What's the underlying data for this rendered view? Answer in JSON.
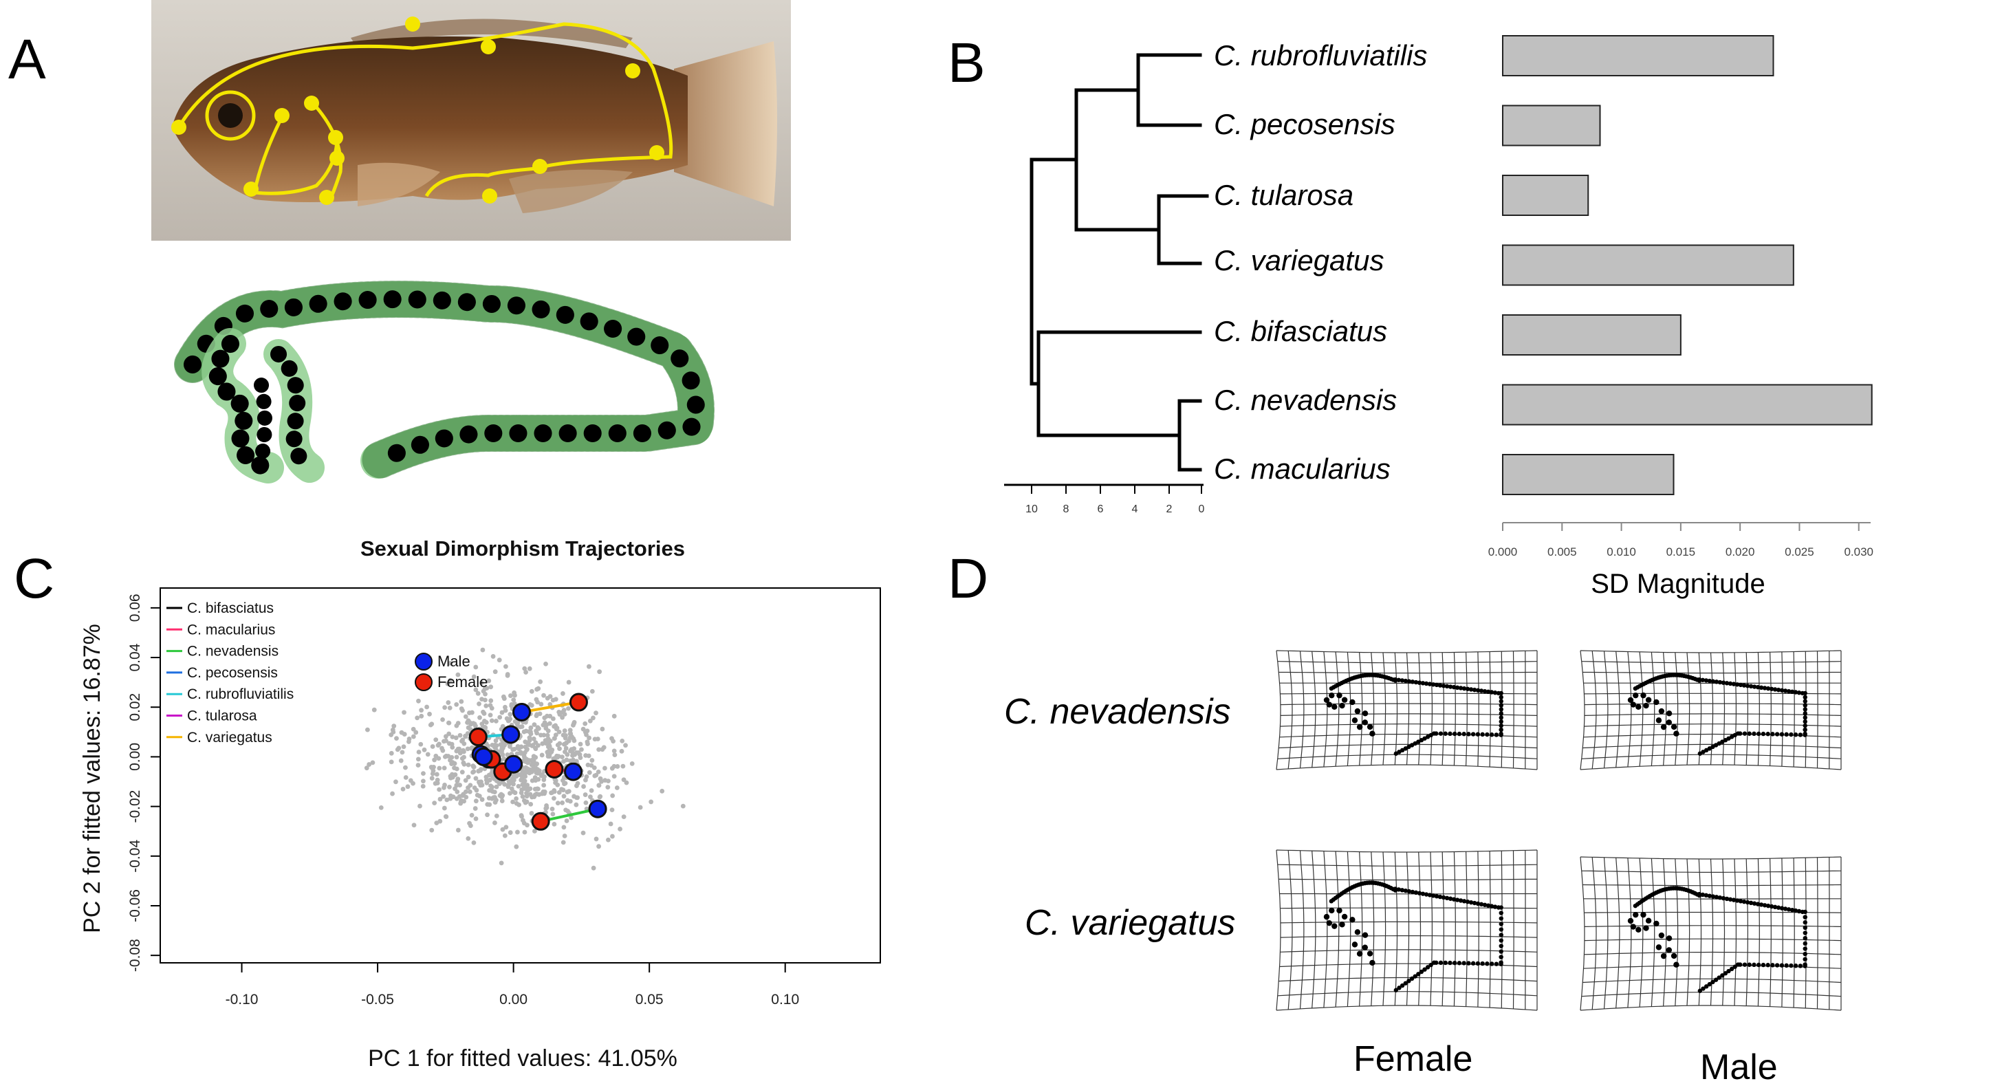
{
  "panel_labels": {
    "a": "A",
    "b": "B",
    "c": "C",
    "d": "D"
  },
  "panel_b": {
    "species": [
      "C. rubrofluviatilis",
      "C. pecosensis",
      "C. tularosa",
      "C. variegatus",
      "C. bifasciatus",
      "C. nevadensis",
      "C. macularius"
    ],
    "tree_axis_ticks": [
      "10",
      "8",
      "6",
      "4",
      "2",
      "0"
    ],
    "bar_axis_label": "SD Magnitude",
    "bar_color": "#c0c0c0"
  },
  "panel_c": {
    "legend_species": [
      "C. bifasciatus",
      "C. macularius",
      "C. nevadensis",
      "C. pecosensis",
      "C. rubrofluviatilis",
      "C. tularosa",
      "C. variegatus"
    ],
    "legend_colors": [
      "#000000",
      "#ff2d6f",
      "#2ec83c",
      "#1f6fe0",
      "#27c9d6",
      "#c913c9",
      "#f5b400"
    ],
    "sex_legend": [
      "Male",
      "Female"
    ],
    "sex_colors": [
      "#0a22e8",
      "#e8210a"
    ]
  },
  "panel_d": {
    "row_labels": [
      "C. nevadensis",
      "C. variegatus"
    ],
    "col_labels": [
      "Female",
      "Male"
    ]
  },
  "chart_data": [
    {
      "type": "bar",
      "categories": [
        "C. rubrofluviatilis",
        "C. pecosensis",
        "C. tularosa",
        "C. variegatus",
        "C. bifasciatus",
        "C. nevadensis",
        "C. macularius"
      ],
      "values": [
        0.0228,
        0.0082,
        0.0072,
        0.0245,
        0.015,
        0.0311,
        0.0144
      ],
      "xlabel": "SD Magnitude",
      "xlim": [
        0,
        0.031
      ],
      "xticks": [
        "0.000",
        "0.005",
        "0.010",
        "0.015",
        "0.020",
        "0.025",
        "0.030"
      ]
    },
    {
      "type": "scatter",
      "title": "Sexual Dimorphism Trajectories",
      "xlabel": "PC 1 for fitted values: 41.05%",
      "ylabel": "PC 2 for fitted values: 16.87%",
      "xlim": [
        -0.13,
        0.135
      ],
      "ylim": [
        -0.083,
        0.068
      ],
      "xticks": [
        "-0.10",
        "-0.05",
        "0.00",
        "0.05",
        "0.10"
      ],
      "yticks": [
        "-0.08",
        "-0.06",
        "-0.04",
        "-0.02",
        "0.00",
        "0.02",
        "0.04",
        "0.06"
      ],
      "series": [
        {
          "name": "C. bifasciatus",
          "male": [
            -0.012,
            0.001
          ],
          "female": [
            -0.009,
            -0.001
          ]
        },
        {
          "name": "C. macularius",
          "male": [
            0.022,
            -0.006
          ],
          "female": [
            0.015,
            -0.005
          ]
        },
        {
          "name": "C. nevadensis",
          "male": [
            0.031,
            -0.021
          ],
          "female": [
            0.01,
            -0.026
          ]
        },
        {
          "name": "C. pecosensis",
          "male": [
            0.0,
            -0.003
          ],
          "female": [
            -0.004,
            -0.006
          ]
        },
        {
          "name": "C. rubrofluviatilis",
          "male": [
            -0.001,
            0.009
          ],
          "female": [
            -0.013,
            0.008
          ]
        },
        {
          "name": "C. tularosa",
          "male": [
            -0.011,
            0.0
          ],
          "female": [
            -0.008,
            -0.001
          ]
        },
        {
          "name": "C. variegatus",
          "male": [
            0.003,
            0.018
          ],
          "female": [
            0.024,
            0.022
          ]
        }
      ]
    }
  ]
}
